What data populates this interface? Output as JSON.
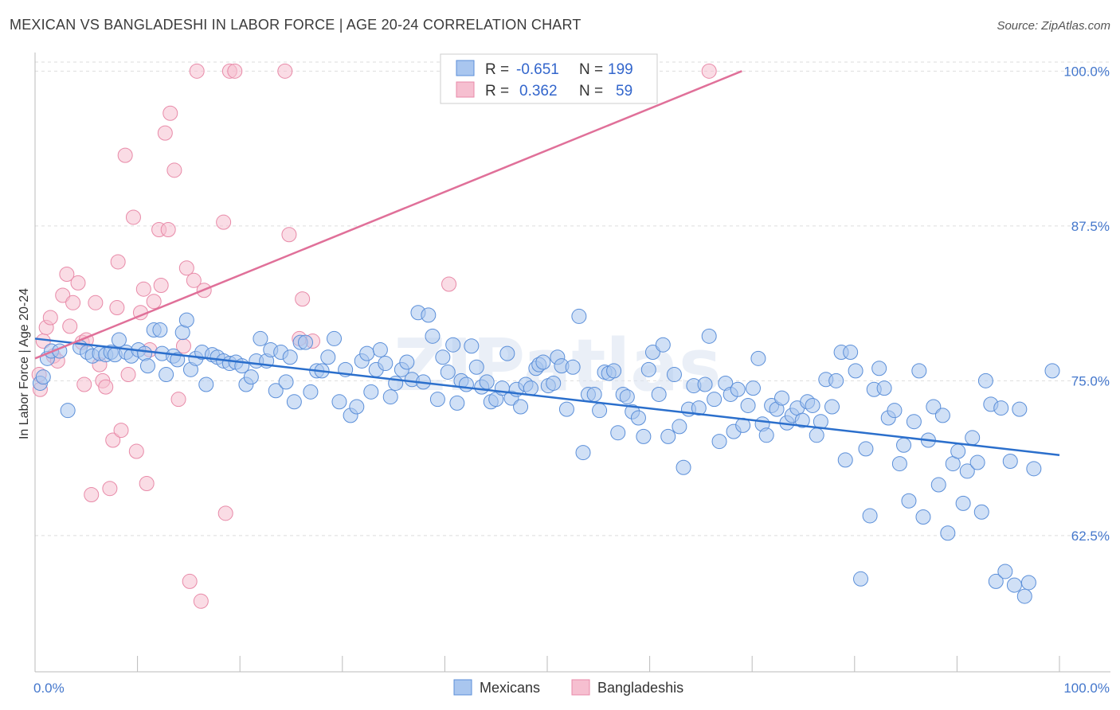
{
  "header": {
    "title": "MEXICAN VS BANGLADESHI IN LABOR FORCE | AGE 20-24 CORRELATION CHART",
    "source": "Source: ZipAtlas.com"
  },
  "watermark": "ZIPatlas",
  "colors": {
    "blue_fill": "#a9c6ef",
    "blue_stroke": "#5b8fd9",
    "blue_line": "#2b6fcc",
    "pink_fill": "#f6bfd0",
    "pink_stroke": "#e88aa8",
    "pink_line": "#e07099",
    "grid": "#dddddd",
    "tick_text": "#4477cc"
  },
  "chart_data": {
    "type": "scatter",
    "xlabel": "",
    "ylabel": "In Labor Force | Age 20-24",
    "xlim": [
      0,
      100
    ],
    "ylim": [
      51.5,
      101.5
    ],
    "x_tick_labels": [
      "0.0%",
      "100.0%"
    ],
    "y_ticks": [
      62.5,
      75.0,
      87.5,
      100.0
    ],
    "y_tick_labels": [
      "62.5%",
      "75.0%",
      "87.5%",
      "100.0%"
    ],
    "legend": [
      {
        "name": "Mexicans",
        "R_label": "R =",
        "R": "-0.651",
        "N_label": "N =",
        "N": "199"
      },
      {
        "name": "Bangladeshis",
        "R_label": "R =",
        "R": "0.362",
        "N_label": "N =",
        "N": "59"
      }
    ],
    "series": [
      {
        "name": "Mexicans",
        "trend": {
          "x": [
            0,
            100
          ],
          "y": [
            78.4,
            69.0
          ]
        },
        "points": [
          [
            0.5,
            74.8
          ],
          [
            0.8,
            75.3
          ],
          [
            1.2,
            76.8
          ],
          [
            1.6,
            77.4
          ],
          [
            2.4,
            77.4
          ],
          [
            3.2,
            72.6
          ],
          [
            4.4,
            77.7
          ],
          [
            5.1,
            77.3
          ],
          [
            5.6,
            77.0
          ],
          [
            6.3,
            77.2
          ],
          [
            6.9,
            77.1
          ],
          [
            7.4,
            77.3
          ],
          [
            7.8,
            77.1
          ],
          [
            8.2,
            78.3
          ],
          [
            8.9,
            77.3
          ],
          [
            9.4,
            77.0
          ],
          [
            10.1,
            77.5
          ],
          [
            10.7,
            77.2
          ],
          [
            11.0,
            76.2
          ],
          [
            11.6,
            79.1
          ],
          [
            12.2,
            79.1
          ],
          [
            12.4,
            77.2
          ],
          [
            12.8,
            75.5
          ],
          [
            13.5,
            77.0
          ],
          [
            13.9,
            76.7
          ],
          [
            14.4,
            78.9
          ],
          [
            14.8,
            79.9
          ],
          [
            15.2,
            75.9
          ],
          [
            15.7,
            76.8
          ],
          [
            16.3,
            77.3
          ],
          [
            16.7,
            74.7
          ],
          [
            17.3,
            77.1
          ],
          [
            17.8,
            76.9
          ],
          [
            18.4,
            76.6
          ],
          [
            19.0,
            76.4
          ],
          [
            19.6,
            76.5
          ],
          [
            20.2,
            76.2
          ],
          [
            20.6,
            74.7
          ],
          [
            21.1,
            75.3
          ],
          [
            21.6,
            76.6
          ],
          [
            22.0,
            78.4
          ],
          [
            22.6,
            76.6
          ],
          [
            23.0,
            77.5
          ],
          [
            23.5,
            74.2
          ],
          [
            24.0,
            77.3
          ],
          [
            24.5,
            74.9
          ],
          [
            24.9,
            76.9
          ],
          [
            25.3,
            73.3
          ],
          [
            25.9,
            78.1
          ],
          [
            26.4,
            78.1
          ],
          [
            26.9,
            74.1
          ],
          [
            27.5,
            75.8
          ],
          [
            28.0,
            75.8
          ],
          [
            28.6,
            76.9
          ],
          [
            29.2,
            78.4
          ],
          [
            29.7,
            73.3
          ],
          [
            30.3,
            75.9
          ],
          [
            30.8,
            72.2
          ],
          [
            31.4,
            72.9
          ],
          [
            31.9,
            76.6
          ],
          [
            32.4,
            77.2
          ],
          [
            32.8,
            74.1
          ],
          [
            33.3,
            75.9
          ],
          [
            33.7,
            77.5
          ],
          [
            34.2,
            76.4
          ],
          [
            34.7,
            73.7
          ],
          [
            35.2,
            74.8
          ],
          [
            35.8,
            75.9
          ],
          [
            36.3,
            76.5
          ],
          [
            36.8,
            75.1
          ],
          [
            37.4,
            80.5
          ],
          [
            37.9,
            74.9
          ],
          [
            38.4,
            80.3
          ],
          [
            38.8,
            78.6
          ],
          [
            39.3,
            73.5
          ],
          [
            39.8,
            76.9
          ],
          [
            40.3,
            75.7
          ],
          [
            40.8,
            77.9
          ],
          [
            41.2,
            73.2
          ],
          [
            41.6,
            75.0
          ],
          [
            42.1,
            74.7
          ],
          [
            42.6,
            77.8
          ],
          [
            43.1,
            76.1
          ],
          [
            43.6,
            74.5
          ],
          [
            44.1,
            74.9
          ],
          [
            44.5,
            73.3
          ],
          [
            45.0,
            73.5
          ],
          [
            45.6,
            74.4
          ],
          [
            46.1,
            77.2
          ],
          [
            46.5,
            73.6
          ],
          [
            47.0,
            74.3
          ],
          [
            47.4,
            72.9
          ],
          [
            47.9,
            74.7
          ],
          [
            48.4,
            74.4
          ],
          [
            48.9,
            76.0
          ],
          [
            49.2,
            76.3
          ],
          [
            49.6,
            76.5
          ],
          [
            50.1,
            74.6
          ],
          [
            50.6,
            74.8
          ],
          [
            51.0,
            76.9
          ],
          [
            51.4,
            76.2
          ],
          [
            51.9,
            72.7
          ],
          [
            52.5,
            76.1
          ],
          [
            53.1,
            80.2
          ],
          [
            53.5,
            69.2
          ],
          [
            54.0,
            73.9
          ],
          [
            54.6,
            73.9
          ],
          [
            55.1,
            72.6
          ],
          [
            55.6,
            75.7
          ],
          [
            56.0,
            75.6
          ],
          [
            56.5,
            75.8
          ],
          [
            56.9,
            70.8
          ],
          [
            57.4,
            73.9
          ],
          [
            57.8,
            73.7
          ],
          [
            58.3,
            72.5
          ],
          [
            58.9,
            72.0
          ],
          [
            59.4,
            70.5
          ],
          [
            59.9,
            75.9
          ],
          [
            60.3,
            77.3
          ],
          [
            60.9,
            73.9
          ],
          [
            61.3,
            77.9
          ],
          [
            61.8,
            70.5
          ],
          [
            62.4,
            75.5
          ],
          [
            62.9,
            71.3
          ],
          [
            63.3,
            68.0
          ],
          [
            63.8,
            72.7
          ],
          [
            64.3,
            74.6
          ],
          [
            64.8,
            72.8
          ],
          [
            65.4,
            74.7
          ],
          [
            65.8,
            78.6
          ],
          [
            66.3,
            73.5
          ],
          [
            66.8,
            70.1
          ],
          [
            67.4,
            74.8
          ],
          [
            67.9,
            73.9
          ],
          [
            68.2,
            70.9
          ],
          [
            68.6,
            74.3
          ],
          [
            69.1,
            71.4
          ],
          [
            69.6,
            73.0
          ],
          [
            70.1,
            74.4
          ],
          [
            70.6,
            76.8
          ],
          [
            71.0,
            71.5
          ],
          [
            71.4,
            70.6
          ],
          [
            71.9,
            73.0
          ],
          [
            72.4,
            72.7
          ],
          [
            72.9,
            73.6
          ],
          [
            73.4,
            71.6
          ],
          [
            73.9,
            72.2
          ],
          [
            74.4,
            72.8
          ],
          [
            74.9,
            71.8
          ],
          [
            75.4,
            73.3
          ],
          [
            75.9,
            73.0
          ],
          [
            76.3,
            70.6
          ],
          [
            76.7,
            71.7
          ],
          [
            77.2,
            75.1
          ],
          [
            77.8,
            72.9
          ],
          [
            78.2,
            75.0
          ],
          [
            78.7,
            77.3
          ],
          [
            79.1,
            68.6
          ],
          [
            79.6,
            77.3
          ],
          [
            80.1,
            75.8
          ],
          [
            80.6,
            59.0
          ],
          [
            81.1,
            69.5
          ],
          [
            81.5,
            64.1
          ],
          [
            81.9,
            74.3
          ],
          [
            82.4,
            76.0
          ],
          [
            82.9,
            74.4
          ],
          [
            83.3,
            72.0
          ],
          [
            83.9,
            72.6
          ],
          [
            84.4,
            68.3
          ],
          [
            84.8,
            69.8
          ],
          [
            85.3,
            65.3
          ],
          [
            85.8,
            71.7
          ],
          [
            86.3,
            75.8
          ],
          [
            86.7,
            64.0
          ],
          [
            87.2,
            70.2
          ],
          [
            87.7,
            72.9
          ],
          [
            88.2,
            66.6
          ],
          [
            88.6,
            72.2
          ],
          [
            89.1,
            62.7
          ],
          [
            89.6,
            68.3
          ],
          [
            90.1,
            69.3
          ],
          [
            90.6,
            65.1
          ],
          [
            91.0,
            67.7
          ],
          [
            91.5,
            70.4
          ],
          [
            92.0,
            68.4
          ],
          [
            92.4,
            64.4
          ],
          [
            92.8,
            75.0
          ],
          [
            93.3,
            73.1
          ],
          [
            93.8,
            58.8
          ],
          [
            94.3,
            72.8
          ],
          [
            94.7,
            59.6
          ],
          [
            95.2,
            68.5
          ],
          [
            95.6,
            58.5
          ],
          [
            96.1,
            72.7
          ],
          [
            96.6,
            57.6
          ],
          [
            97.0,
            58.7
          ],
          [
            97.5,
            67.9
          ],
          [
            99.3,
            75.8
          ]
        ]
      },
      {
        "name": "Bangladeshis",
        "trend": {
          "x": [
            0,
            69
          ],
          "y": [
            76.8,
            100.0
          ]
        },
        "points": [
          [
            0.4,
            75.5
          ],
          [
            0.5,
            74.3
          ],
          [
            0.8,
            78.2
          ],
          [
            1.1,
            79.3
          ],
          [
            1.5,
            80.1
          ],
          [
            1.8,
            77.0
          ],
          [
            2.2,
            76.6
          ],
          [
            2.7,
            81.9
          ],
          [
            3.1,
            83.6
          ],
          [
            3.4,
            79.4
          ],
          [
            3.7,
            81.3
          ],
          [
            4.2,
            82.9
          ],
          [
            4.6,
            78.1
          ],
          [
            4.8,
            74.7
          ],
          [
            5.0,
            78.3
          ],
          [
            5.5,
            65.8
          ],
          [
            5.9,
            81.3
          ],
          [
            6.3,
            76.3
          ],
          [
            6.6,
            75.0
          ],
          [
            6.9,
            74.5
          ],
          [
            7.3,
            66.3
          ],
          [
            7.6,
            70.2
          ],
          [
            8.0,
            80.9
          ],
          [
            8.1,
            84.6
          ],
          [
            8.4,
            71.0
          ],
          [
            8.8,
            93.2
          ],
          [
            9.1,
            75.5
          ],
          [
            9.6,
            88.2
          ],
          [
            9.9,
            69.3
          ],
          [
            10.3,
            80.5
          ],
          [
            10.6,
            82.4
          ],
          [
            10.9,
            66.7
          ],
          [
            11.2,
            77.5
          ],
          [
            11.6,
            81.4
          ],
          [
            12.1,
            87.2
          ],
          [
            12.3,
            82.7
          ],
          [
            12.7,
            95.0
          ],
          [
            13.0,
            87.2
          ],
          [
            13.2,
            96.6
          ],
          [
            13.6,
            92.0
          ],
          [
            14.0,
            73.5
          ],
          [
            14.5,
            77.8
          ],
          [
            14.8,
            84.1
          ],
          [
            15.1,
            58.8
          ],
          [
            15.5,
            83.1
          ],
          [
            15.8,
            100.0
          ],
          [
            16.2,
            57.2
          ],
          [
            16.5,
            82.3
          ],
          [
            18.4,
            87.8
          ],
          [
            18.6,
            64.3
          ],
          [
            19.0,
            100.0
          ],
          [
            19.5,
            100.0
          ],
          [
            24.4,
            100.0
          ],
          [
            24.8,
            86.8
          ],
          [
            25.8,
            78.4
          ],
          [
            26.1,
            81.6
          ],
          [
            27.1,
            78.2
          ],
          [
            40.4,
            82.8
          ],
          [
            65.8,
            100.0
          ]
        ]
      }
    ]
  }
}
